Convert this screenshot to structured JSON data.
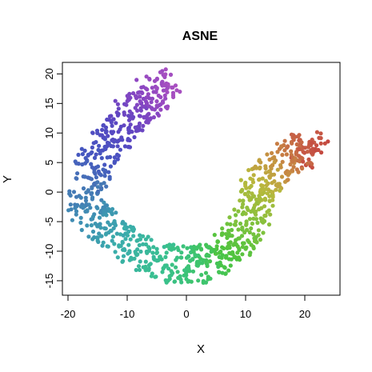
{
  "chart_data": {
    "type": "scatter",
    "title": "ASNE",
    "xlabel": "X",
    "ylabel": "Y",
    "xlim": [
      -20,
      25
    ],
    "ylim": [
      -16.5,
      21
    ],
    "xticks": [
      -20,
      -10,
      0,
      10,
      20
    ],
    "yticks": [
      -15,
      -10,
      -5,
      0,
      5,
      10,
      15,
      20
    ],
    "grid": false,
    "legend": "none",
    "point_color_scale": "rainbow hue gradient along the manifold: purple (top) → blue → teal → green → yellow-olive → red (right end)",
    "point_count_approx": 1000,
    "manifold_path": [
      {
        "x": -2,
        "y": 18,
        "color": "#a84fc0"
      },
      {
        "x": -7,
        "y": 15.5,
        "color": "#8a46c2"
      },
      {
        "x": -11,
        "y": 11,
        "color": "#5a46c2"
      },
      {
        "x": -15,
        "y": 6,
        "color": "#4657c0"
      },
      {
        "x": -17,
        "y": 1,
        "color": "#4676b5"
      },
      {
        "x": -16,
        "y": -4,
        "color": "#3f8fb3"
      },
      {
        "x": -11,
        "y": -8.5,
        "color": "#3aaeaa"
      },
      {
        "x": -4,
        "y": -12,
        "color": "#39c08f"
      },
      {
        "x": 2,
        "y": -12.5,
        "color": "#3ec46e"
      },
      {
        "x": 7,
        "y": -10.5,
        "color": "#4cc43f"
      },
      {
        "x": 10,
        "y": -5.5,
        "color": "#7cc23d"
      },
      {
        "x": 12.5,
        "y": 1,
        "color": "#b9b83d"
      },
      {
        "x": 16,
        "y": 5,
        "color": "#c78c43"
      },
      {
        "x": 20,
        "y": 8,
        "color": "#c65b46"
      },
      {
        "x": 22.5,
        "y": 6,
        "color": "#c4473f"
      }
    ]
  }
}
